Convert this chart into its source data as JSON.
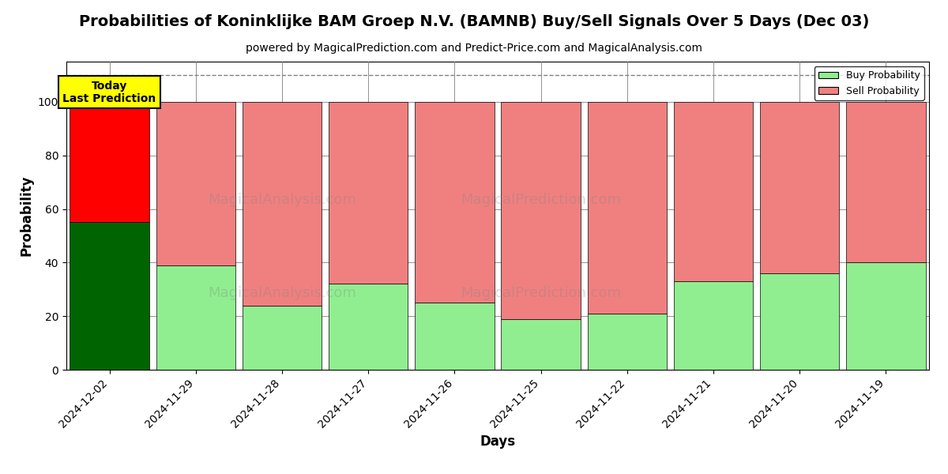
{
  "title": "Probabilities of Koninklijke BAM Groep N.V. (BAMNB) Buy/Sell Signals Over 5 Days (Dec 03)",
  "subtitle": "powered by MagicalPrediction.com and Predict-Price.com and MagicalAnalysis.com",
  "xlabel": "Days",
  "ylabel": "Probability",
  "categories": [
    "2024-12-02",
    "2024-11-29",
    "2024-11-28",
    "2024-11-27",
    "2024-11-26",
    "2024-11-25",
    "2024-11-22",
    "2024-11-21",
    "2024-11-20",
    "2024-11-19"
  ],
  "buy_values": [
    55,
    39,
    24,
    32,
    25,
    19,
    21,
    33,
    36,
    40
  ],
  "sell_values": [
    45,
    61,
    76,
    68,
    75,
    81,
    79,
    67,
    64,
    60
  ],
  "buy_color_today": "#006400",
  "sell_color_today": "#ff0000",
  "buy_color_normal": "#90ee90",
  "sell_color_normal": "#f08080",
  "today_label": "Today\nLast Prediction",
  "legend_buy": "Buy Probability",
  "legend_sell": "Sell Probability",
  "ylim": [
    0,
    115
  ],
  "yticks": [
    0,
    20,
    40,
    60,
    80,
    100
  ],
  "dashed_line_y": 110,
  "watermark1": "MagicalAnalysis.com",
  "watermark2": "MagicalPrediction.com",
  "title_fontsize": 14,
  "subtitle_fontsize": 10,
  "axis_label_fontsize": 12,
  "tick_fontsize": 10,
  "bar_width": 0.92
}
